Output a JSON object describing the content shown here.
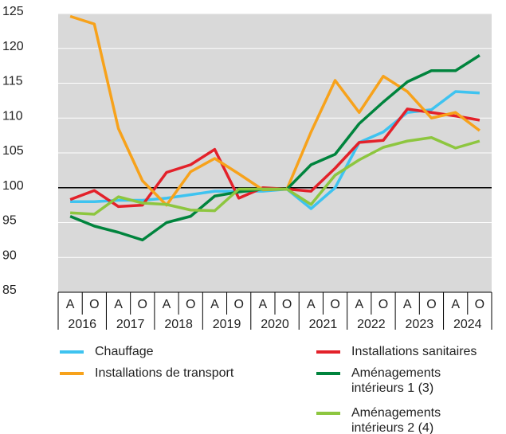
{
  "chart_data": {
    "type": "line",
    "categories": [
      "A",
      "O",
      "A",
      "O",
      "A",
      "O",
      "A",
      "O",
      "A",
      "O",
      "A",
      "O",
      "A",
      "O",
      "A",
      "O",
      "A",
      "O"
    ],
    "groups": [
      "2016",
      "2017",
      "2018",
      "2019",
      "2020",
      "2021",
      "2022",
      "2023",
      "2024"
    ],
    "ylim": [
      85,
      125
    ],
    "yticks": [
      85,
      90,
      95,
      100,
      105,
      110,
      115,
      120,
      125
    ],
    "grid": true,
    "reference_line": 100,
    "series": [
      {
        "name": "Chauffage",
        "color": "#3ec3f0",
        "values": [
          98,
          98,
          98.2,
          98.2,
          98.5,
          99,
          99.5,
          99.5,
          99.5,
          99.8,
          97,
          100,
          106.5,
          108,
          110.8,
          111.2,
          113.8,
          113.6
        ]
      },
      {
        "name": "Installations sanitaires",
        "color": "#e3212a",
        "values": [
          98.3,
          99.6,
          97.3,
          97.5,
          102.2,
          103.3,
          105.5,
          98.5,
          100,
          99.8,
          99.5,
          102.8,
          106.5,
          106.8,
          111.3,
          110.8,
          110.3,
          109.7
        ]
      },
      {
        "name": "Installations de transport",
        "color": "#f7a21b",
        "values": [
          124.6,
          123.5,
          108.5,
          101,
          97.5,
          102.3,
          104.2,
          102,
          99.7,
          99.8,
          108,
          115.4,
          110.8,
          116,
          113.8,
          110,
          110.8,
          108.2
        ]
      },
      {
        "name": "Aménagements intérieurs 1 (3)",
        "color": "#00843d",
        "values": [
          95.9,
          94.5,
          93.6,
          92.5,
          95,
          95.9,
          98.8,
          99.4,
          99.8,
          99.8,
          103.3,
          104.8,
          109.2,
          112.3,
          115.2,
          116.8,
          116.8,
          119
        ]
      },
      {
        "name": "Aménagements intérieurs 2 (4)",
        "color": "#8dc63f",
        "values": [
          96.4,
          96.2,
          98.7,
          97.8,
          97.6,
          96.8,
          96.7,
          99.8,
          99.8,
          99.8,
          97.6,
          101.8,
          104,
          105.8,
          106.7,
          107.2,
          105.7,
          106.7
        ]
      }
    ]
  }
}
